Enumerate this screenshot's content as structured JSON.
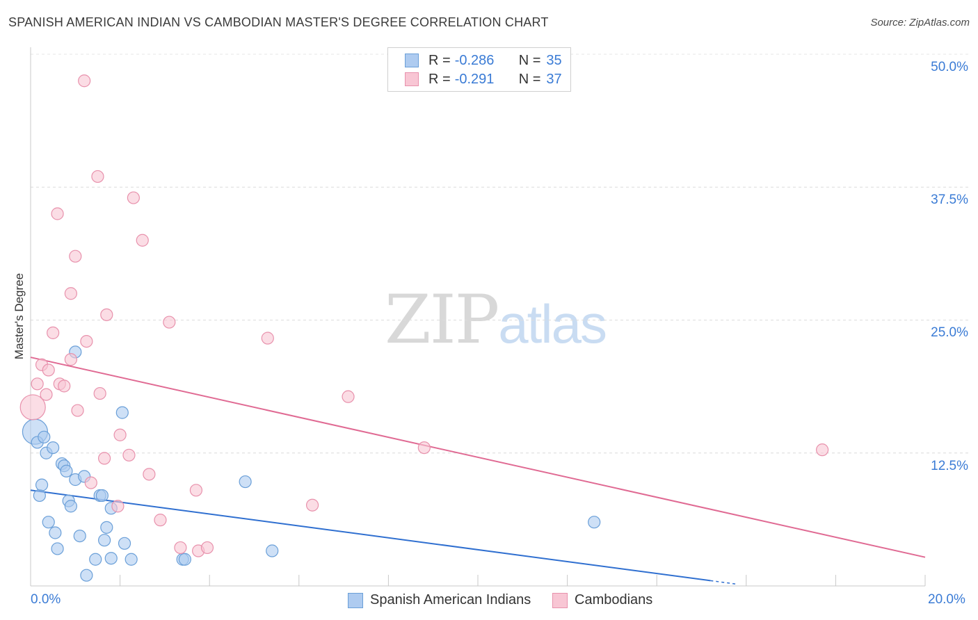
{
  "header": {
    "title": "SPANISH AMERICAN INDIAN VS CAMBODIAN MASTER'S DEGREE CORRELATION CHART",
    "source": "Source: ZipAtlas.com"
  },
  "watermark": {
    "zip": "ZIP",
    "atlas": "atlas"
  },
  "legend": {
    "rows": [
      {
        "r_label": "R =",
        "r_value": "-0.286",
        "n_label": "N =",
        "n_value": "35"
      },
      {
        "r_label": "R =",
        "r_value": "-0.291",
        "n_label": "N =",
        "n_value": "37"
      }
    ]
  },
  "colors": {
    "blue_fill": "#aecbf0",
    "blue_stroke": "#6a9fd8",
    "blue_line": "#2f6fd0",
    "pink_fill": "#f8c6d4",
    "pink_stroke": "#e891ac",
    "pink_line": "#e06a93"
  },
  "chart_data": {
    "type": "scatter",
    "title": "SPANISH AMERICAN INDIAN VS CAMBODIAN MASTER'S DEGREE CORRELATION CHART",
    "xlabel": "",
    "ylabel": "Master's Degree",
    "xlim": [
      0,
      20
    ],
    "ylim": [
      0,
      50
    ],
    "x_ticks": [
      "0.0%",
      "20.0%"
    ],
    "y_ticks": [
      "12.5%",
      "25.0%",
      "37.5%",
      "50.0%"
    ],
    "y_tick_values": [
      12.5,
      25.0,
      37.5,
      50.0
    ],
    "legend_position": "top-center",
    "series": [
      {
        "name": "Spanish American Indians",
        "r": -0.286,
        "n": 35,
        "trend": {
          "x0": 0,
          "y0": 9.0,
          "x1": 15.2,
          "y1": 0.5
        },
        "points": [
          {
            "x": 0.1,
            "y": 14.5,
            "large": true
          },
          {
            "x": 0.15,
            "y": 13.5
          },
          {
            "x": 0.3,
            "y": 14.0
          },
          {
            "x": 0.35,
            "y": 12.5
          },
          {
            "x": 0.5,
            "y": 13.0
          },
          {
            "x": 0.2,
            "y": 8.5
          },
          {
            "x": 0.25,
            "y": 9.5
          },
          {
            "x": 0.7,
            "y": 11.5
          },
          {
            "x": 0.75,
            "y": 11.3
          },
          {
            "x": 0.8,
            "y": 10.8
          },
          {
            "x": 1.0,
            "y": 10.0
          },
          {
            "x": 1.2,
            "y": 10.3
          },
          {
            "x": 0.85,
            "y": 8.0
          },
          {
            "x": 0.9,
            "y": 7.5
          },
          {
            "x": 1.55,
            "y": 8.5
          },
          {
            "x": 1.6,
            "y": 8.5
          },
          {
            "x": 1.8,
            "y": 7.3
          },
          {
            "x": 0.4,
            "y": 6.0
          },
          {
            "x": 0.55,
            "y": 5.0
          },
          {
            "x": 0.6,
            "y": 3.5
          },
          {
            "x": 1.1,
            "y": 4.7
          },
          {
            "x": 1.7,
            "y": 5.5
          },
          {
            "x": 1.65,
            "y": 4.3
          },
          {
            "x": 2.1,
            "y": 4.0
          },
          {
            "x": 1.45,
            "y": 2.5
          },
          {
            "x": 1.8,
            "y": 2.6
          },
          {
            "x": 2.25,
            "y": 2.5
          },
          {
            "x": 1.25,
            "y": 1.0
          },
          {
            "x": 3.4,
            "y": 2.5
          },
          {
            "x": 3.45,
            "y": 2.5
          },
          {
            "x": 4.8,
            "y": 9.8
          },
          {
            "x": 5.4,
            "y": 3.3
          },
          {
            "x": 12.6,
            "y": 6.0
          },
          {
            "x": 1.0,
            "y": 22.0
          },
          {
            "x": 2.05,
            "y": 16.3
          }
        ]
      },
      {
        "name": "Cambodians",
        "r": -0.291,
        "n": 37,
        "trend": {
          "x0": 0,
          "y0": 21.5,
          "x1": 20,
          "y1": 2.7
        },
        "points": [
          {
            "x": 1.2,
            "y": 47.5
          },
          {
            "x": 1.5,
            "y": 38.5
          },
          {
            "x": 2.3,
            "y": 36.5
          },
          {
            "x": 0.6,
            "y": 35.0
          },
          {
            "x": 2.5,
            "y": 32.5
          },
          {
            "x": 1.0,
            "y": 31.0
          },
          {
            "x": 0.9,
            "y": 27.5
          },
          {
            "x": 1.7,
            "y": 25.5
          },
          {
            "x": 3.1,
            "y": 24.8
          },
          {
            "x": 0.5,
            "y": 23.8
          },
          {
            "x": 1.25,
            "y": 23.0
          },
          {
            "x": 5.3,
            "y": 23.3
          },
          {
            "x": 0.9,
            "y": 21.3
          },
          {
            "x": 0.25,
            "y": 20.8
          },
          {
            "x": 0.4,
            "y": 20.3
          },
          {
            "x": 0.15,
            "y": 19.0
          },
          {
            "x": 0.65,
            "y": 19.0
          },
          {
            "x": 0.75,
            "y": 18.8
          },
          {
            "x": 0.35,
            "y": 18.0
          },
          {
            "x": 1.55,
            "y": 18.1
          },
          {
            "x": 7.1,
            "y": 17.8
          },
          {
            "x": 0.05,
            "y": 16.8,
            "large": true
          },
          {
            "x": 1.05,
            "y": 16.5
          },
          {
            "x": 2.0,
            "y": 14.2
          },
          {
            "x": 1.65,
            "y": 12.0
          },
          {
            "x": 2.2,
            "y": 12.3
          },
          {
            "x": 8.8,
            "y": 13.0
          },
          {
            "x": 17.7,
            "y": 12.8
          },
          {
            "x": 2.65,
            "y": 10.5
          },
          {
            "x": 1.35,
            "y": 9.7
          },
          {
            "x": 3.7,
            "y": 9.0
          },
          {
            "x": 1.95,
            "y": 7.5
          },
          {
            "x": 6.3,
            "y": 7.6
          },
          {
            "x": 2.9,
            "y": 6.2
          },
          {
            "x": 3.35,
            "y": 3.6
          },
          {
            "x": 3.75,
            "y": 3.3
          },
          {
            "x": 3.95,
            "y": 3.6
          }
        ]
      }
    ]
  }
}
